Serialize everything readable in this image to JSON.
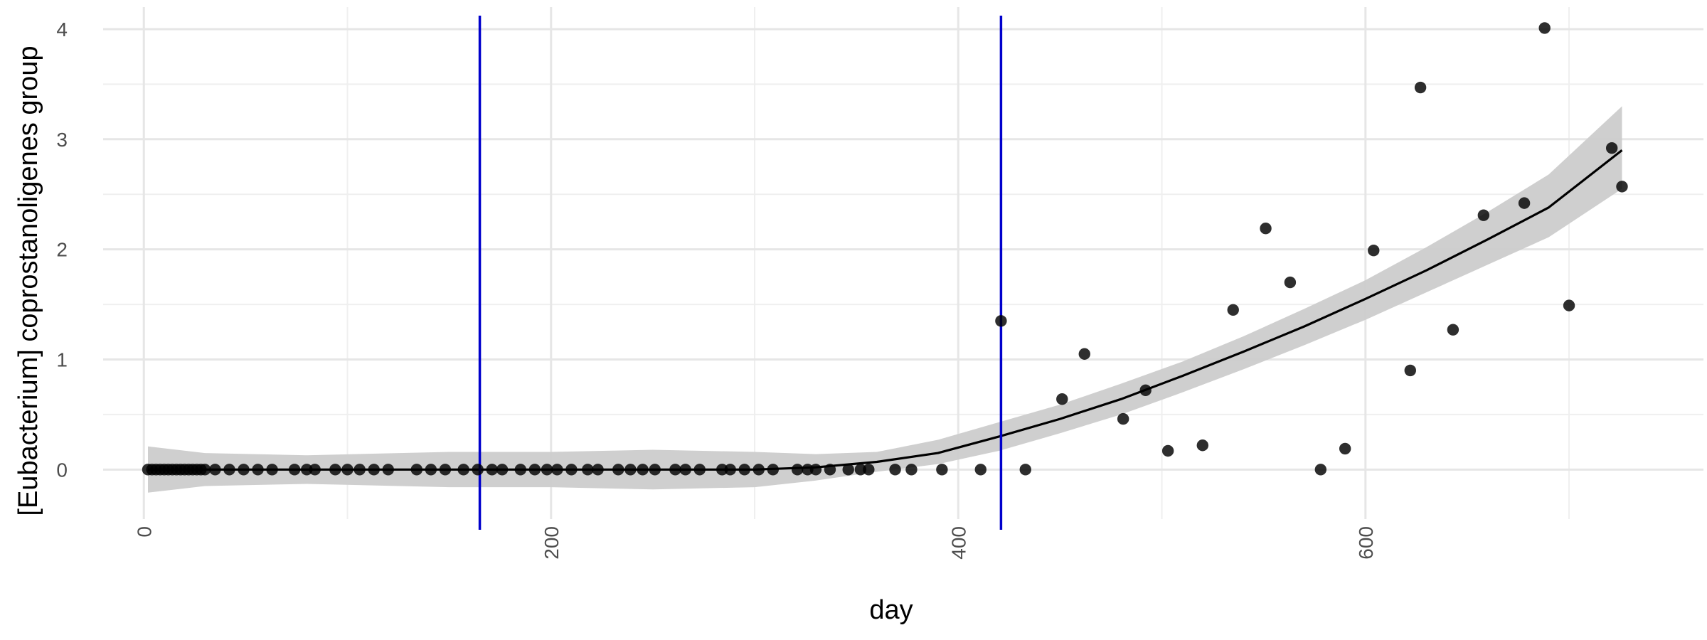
{
  "chart_data": {
    "type": "scatter",
    "xlabel": "day",
    "ylabel": "[Eubacterium] coprostanoligenes group",
    "xlim": [
      -20,
      766
    ],
    "ylim": [
      -0.45,
      4.2
    ],
    "x_ticks": [
      0,
      200,
      400,
      600
    ],
    "y_ticks": [
      0,
      1,
      2,
      3,
      4
    ],
    "x_tick_labels": [
      "0",
      "200",
      "400",
      "600"
    ],
    "y_tick_labels": [
      "0",
      "1",
      "2",
      "3",
      "4"
    ],
    "vlines": [
      165,
      421
    ],
    "vline_color": "#0000cc",
    "point_color": "#000000",
    "fit_color": "#000000",
    "band_color": "#cccccc",
    "grid": true,
    "legend": "none",
    "points": [
      [
        2,
        0
      ],
      [
        4,
        0
      ],
      [
        6,
        0
      ],
      [
        8,
        0
      ],
      [
        10,
        0
      ],
      [
        12,
        0
      ],
      [
        14,
        0
      ],
      [
        16,
        0
      ],
      [
        18,
        0
      ],
      [
        20,
        0
      ],
      [
        22,
        0
      ],
      [
        24,
        0
      ],
      [
        26,
        0
      ],
      [
        28,
        0
      ],
      [
        30,
        0
      ],
      [
        35,
        0
      ],
      [
        42,
        0
      ],
      [
        49,
        0
      ],
      [
        56,
        0
      ],
      [
        63,
        0
      ],
      [
        74,
        0
      ],
      [
        80,
        0
      ],
      [
        84,
        0
      ],
      [
        94,
        0
      ],
      [
        100,
        0
      ],
      [
        106,
        0
      ],
      [
        113,
        0
      ],
      [
        120,
        0
      ],
      [
        134,
        0
      ],
      [
        141,
        0
      ],
      [
        148,
        0
      ],
      [
        157,
        0
      ],
      [
        164,
        0
      ],
      [
        171,
        0
      ],
      [
        176,
        0
      ],
      [
        185,
        0
      ],
      [
        192,
        0
      ],
      [
        198,
        0
      ],
      [
        203,
        0
      ],
      [
        210,
        0
      ],
      [
        218,
        0
      ],
      [
        223,
        0
      ],
      [
        233,
        0
      ],
      [
        239,
        0
      ],
      [
        245,
        0
      ],
      [
        251,
        0
      ],
      [
        261,
        0
      ],
      [
        266,
        0
      ],
      [
        273,
        0
      ],
      [
        284,
        0
      ],
      [
        288,
        0
      ],
      [
        295,
        0
      ],
      [
        302,
        0
      ],
      [
        309,
        0
      ],
      [
        321,
        0
      ],
      [
        326,
        0
      ],
      [
        330,
        0
      ],
      [
        337,
        0
      ],
      [
        346,
        0
      ],
      [
        352,
        0
      ],
      [
        356,
        0
      ],
      [
        369,
        0
      ],
      [
        377,
        0
      ],
      [
        392,
        0
      ],
      [
        411,
        0
      ],
      [
        421,
        1.35
      ],
      [
        433,
        0
      ],
      [
        451,
        0.64
      ],
      [
        462,
        1.05
      ],
      [
        481,
        0.46
      ],
      [
        492,
        0.72
      ],
      [
        503,
        0.17
      ],
      [
        520,
        0.22
      ],
      [
        535,
        1.45
      ],
      [
        551,
        2.19
      ],
      [
        563,
        1.7
      ],
      [
        578,
        0
      ],
      [
        590,
        0.19
      ],
      [
        604,
        1.99
      ],
      [
        622,
        0.9
      ],
      [
        627,
        3.47
      ],
      [
        643,
        1.27
      ],
      [
        658,
        2.31
      ],
      [
        678,
        2.42
      ],
      [
        688,
        4.01
      ],
      [
        700,
        1.49
      ],
      [
        721,
        2.92
      ],
      [
        726,
        2.57
      ]
    ],
    "fit": [
      [
        2,
        0
      ],
      [
        50,
        0
      ],
      [
        100,
        0
      ],
      [
        150,
        0
      ],
      [
        200,
        0
      ],
      [
        250,
        0
      ],
      [
        300,
        0
      ],
      [
        330,
        0.02
      ],
      [
        360,
        0.07
      ],
      [
        390,
        0.15
      ],
      [
        420,
        0.3
      ],
      [
        450,
        0.46
      ],
      [
        480,
        0.64
      ],
      [
        510,
        0.85
      ],
      [
        540,
        1.07
      ],
      [
        570,
        1.3
      ],
      [
        600,
        1.55
      ],
      [
        630,
        1.81
      ],
      [
        660,
        2.09
      ],
      [
        690,
        2.38
      ],
      [
        726,
        2.9
      ]
    ],
    "band": [
      [
        2,
        0.21,
        -0.21
      ],
      [
        30,
        0.15,
        -0.15
      ],
      [
        80,
        0.13,
        -0.13
      ],
      [
        150,
        0.16,
        -0.16
      ],
      [
        200,
        0.16,
        -0.16
      ],
      [
        250,
        0.18,
        -0.18
      ],
      [
        300,
        0.16,
        -0.16
      ],
      [
        330,
        0.14,
        -0.1
      ],
      [
        360,
        0.16,
        -0.02
      ],
      [
        390,
        0.27,
        0.05
      ],
      [
        420,
        0.43,
        0.17
      ],
      [
        450,
        0.59,
        0.33
      ],
      [
        480,
        0.78,
        0.5
      ],
      [
        510,
        0.98,
        0.7
      ],
      [
        540,
        1.21,
        0.91
      ],
      [
        570,
        1.46,
        1.13
      ],
      [
        600,
        1.72,
        1.36
      ],
      [
        630,
        2.02,
        1.61
      ],
      [
        660,
        2.34,
        1.86
      ],
      [
        690,
        2.68,
        2.11
      ],
      [
        726,
        3.3,
        2.55
      ]
    ]
  }
}
